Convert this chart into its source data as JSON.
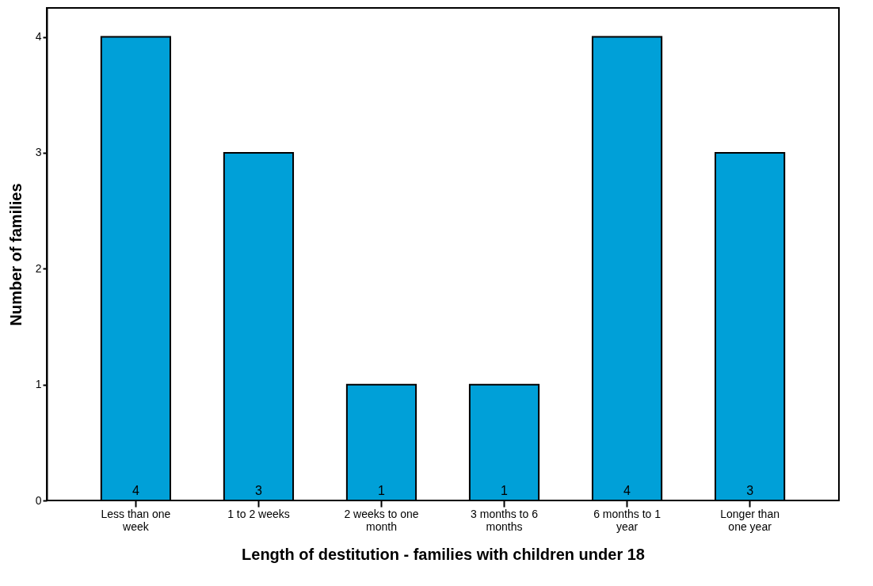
{
  "chart_data": {
    "type": "bar",
    "xlabel": "Length of destitution - families with children under 18",
    "ylabel": "Number of families",
    "categories": [
      "Less than one week",
      "1 to 2 weeks",
      "2 weeks to one month",
      "3 months to 6 months",
      "6 months to 1 year",
      "Longer than one year"
    ],
    "values": [
      4,
      3,
      1,
      1,
      4,
      3
    ],
    "color": "#00a0d8",
    "ylim": [
      0,
      4.25
    ],
    "yticks": [
      0,
      1,
      2,
      3,
      4
    ],
    "grid": false,
    "data_labels": true
  }
}
